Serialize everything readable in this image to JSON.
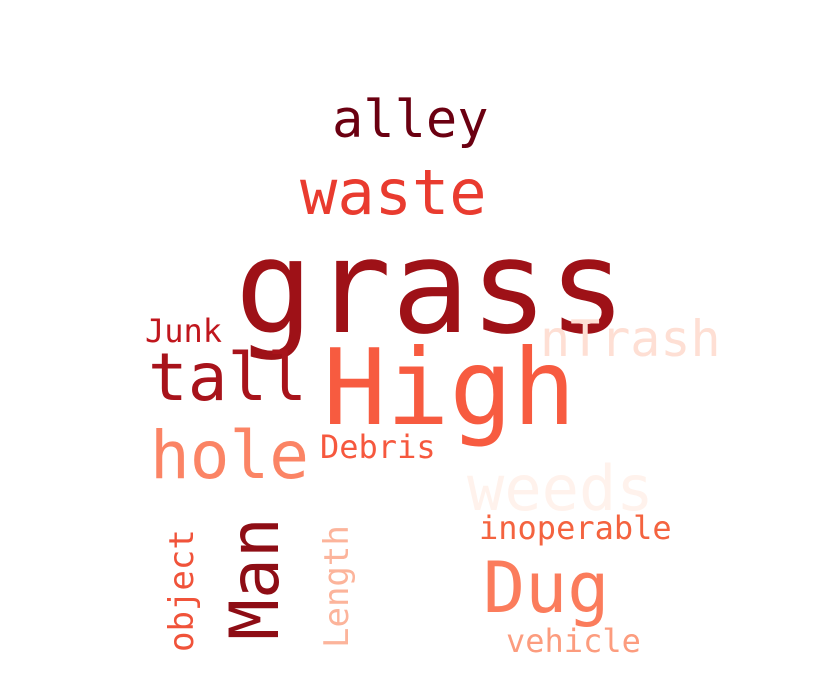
{
  "words": {
    "grass": {
      "text": "grass",
      "color": "#9e1117"
    },
    "high": {
      "text": "High",
      "color": "#f75b40"
    },
    "tall": {
      "text": "tall",
      "color": "#a8131b"
    },
    "hole": {
      "text": "hole",
      "color": "#fb8465"
    },
    "waste": {
      "text": "waste",
      "color": "#e93b2f"
    },
    "alley": {
      "text": "alley",
      "color": "#6b0011"
    },
    "dug": {
      "text": "Dug",
      "color": "#fb7c5c"
    },
    "weeds": {
      "text": "weeds",
      "color": "#fff2ec"
    },
    "ntrash": {
      "text": "nTrash",
      "color": "#fedfd4"
    },
    "junk": {
      "text": "Junk",
      "color": "#c0161d"
    },
    "debris": {
      "text": "Debris",
      "color": "#f6583e"
    },
    "inoperable": {
      "text": "inoperable",
      "color": "#f4633f"
    },
    "vehicle": {
      "text": "vehicle",
      "color": "#fc9c7e"
    },
    "man": {
      "text": "Man",
      "color": "#8e0d15"
    },
    "object": {
      "text": "object",
      "color": "#f0533a"
    },
    "length": {
      "text": "Length",
      "color": "#fcb49b"
    }
  }
}
